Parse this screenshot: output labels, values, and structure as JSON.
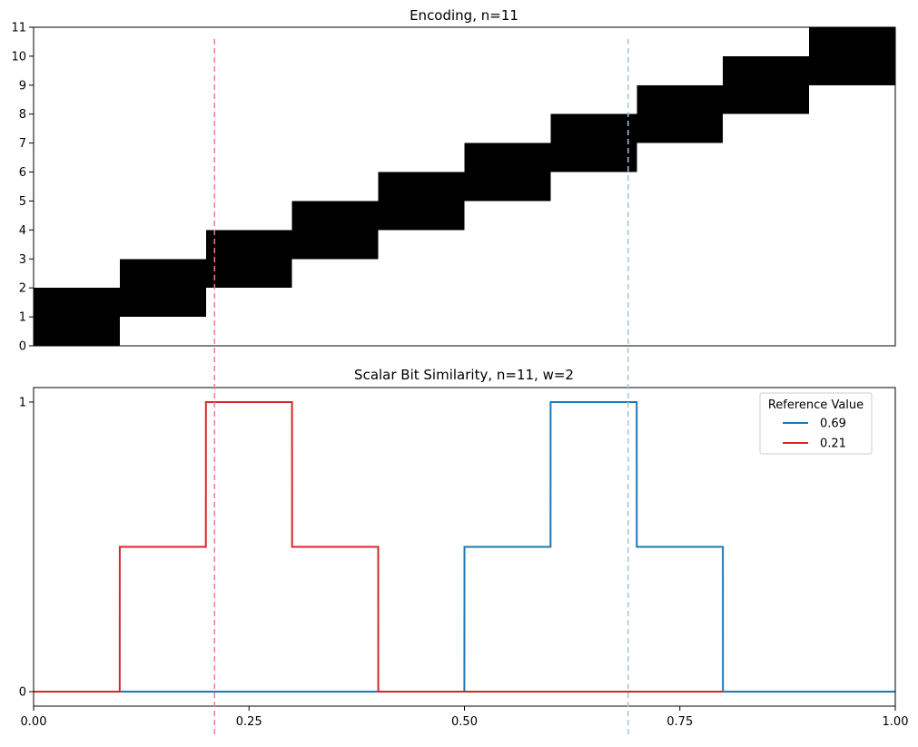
{
  "chart_data": [
    {
      "type": "heatmap",
      "title": "Encoding, n=11",
      "xlim": [
        0,
        1
      ],
      "ylim": [
        0,
        11
      ],
      "y_ticks": [
        "0",
        "1",
        "2",
        "3",
        "4",
        "5",
        "6",
        "7",
        "8",
        "9",
        "10",
        "11"
      ],
      "x_ticks_shown": false,
      "bin_width": 0.1,
      "active_bits": [
        {
          "x_start": 0.0,
          "x_end": 0.1,
          "bits": [
            0,
            1
          ]
        },
        {
          "x_start": 0.1,
          "x_end": 0.2,
          "bits": [
            1,
            2
          ]
        },
        {
          "x_start": 0.2,
          "x_end": 0.3,
          "bits": [
            2,
            3
          ]
        },
        {
          "x_start": 0.3,
          "x_end": 0.4,
          "bits": [
            3,
            4
          ]
        },
        {
          "x_start": 0.4,
          "x_end": 0.5,
          "bits": [
            4,
            5
          ]
        },
        {
          "x_start": 0.5,
          "x_end": 0.6,
          "bits": [
            5,
            6
          ]
        },
        {
          "x_start": 0.6,
          "x_end": 0.7,
          "bits": [
            6,
            7
          ]
        },
        {
          "x_start": 0.7,
          "x_end": 0.8,
          "bits": [
            7,
            8
          ]
        },
        {
          "x_start": 0.8,
          "x_end": 0.9,
          "bits": [
            8,
            9
          ]
        },
        {
          "x_start": 0.9,
          "x_end": 1.0,
          "bits": [
            9,
            10
          ]
        }
      ],
      "fill_color": "#000000"
    },
    {
      "type": "line",
      "title": "Scalar Bit Similarity, n=11, w=2",
      "xlim": [
        0,
        1
      ],
      "ylim": [
        -0.05,
        1.05
      ],
      "x_ticks": [
        "0.00",
        "0.25",
        "0.50",
        "0.75",
        "1.00"
      ],
      "x_tick_values": [
        0,
        0.25,
        0.5,
        0.75,
        1.0
      ],
      "y_ticks": [
        "0",
        "1"
      ],
      "y_tick_values": [
        0,
        1
      ],
      "legend": {
        "title": "Reference Value",
        "placement": "top-right"
      },
      "series": [
        {
          "name": "0.69",
          "color": "#1f77b4",
          "x": [
            0,
            0.4999,
            0.5,
            0.5999,
            0.6,
            0.6999,
            0.7,
            0.7999,
            0.8,
            1.0
          ],
          "y": [
            0,
            0,
            0.5,
            0.5,
            1,
            1,
            0.5,
            0.5,
            0,
            0
          ]
        },
        {
          "name": "0.21",
          "color": "#d62728",
          "x": [
            0,
            0.0999,
            0.1,
            0.1999,
            0.2,
            0.2999,
            0.3,
            0.3999,
            0.4,
            0.8
          ],
          "y": [
            0,
            0,
            0.5,
            0.5,
            1,
            1,
            0.5,
            0.5,
            0,
            0
          ]
        }
      ],
      "reference_lines": [
        {
          "x": 0.21,
          "color": "#f08080",
          "style": "dashed"
        },
        {
          "x": 0.69,
          "color": "#9ec5e4",
          "style": "dashed"
        }
      ]
    }
  ]
}
